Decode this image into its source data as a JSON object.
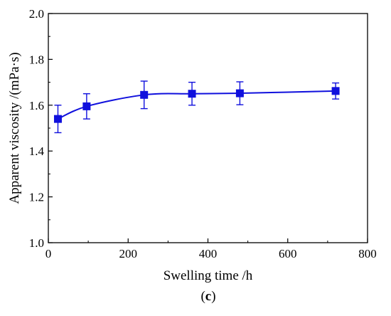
{
  "chart_data": {
    "type": "line",
    "title": "",
    "xlabel": "Swelling time /h",
    "ylabel": "Apparent viscosity  /(mPa·s)",
    "xlim": [
      0,
      800
    ],
    "ylim": [
      1.0,
      2.0
    ],
    "xticks": [
      0,
      200,
      400,
      600,
      800
    ],
    "yticks": [
      1.0,
      1.2,
      1.4,
      1.6,
      1.8,
      2.0
    ],
    "xtick_labels": [
      "0",
      "200",
      "400",
      "600",
      "800"
    ],
    "ytick_labels": [
      "1.0",
      "1.2",
      "1.4",
      "1.6",
      "1.8",
      "2.0"
    ],
    "grid": false,
    "series": [
      {
        "color": "#1010dd",
        "marker": "square",
        "x": [
          24,
          96,
          240,
          360,
          480,
          720
        ],
        "y": [
          1.54,
          1.595,
          1.645,
          1.65,
          1.652,
          1.662
        ],
        "error": [
          0.06,
          0.055,
          0.06,
          0.05,
          0.05,
          0.035
        ]
      }
    ]
  },
  "panel": {
    "open": "(",
    "letter": "c",
    "close": ")"
  }
}
